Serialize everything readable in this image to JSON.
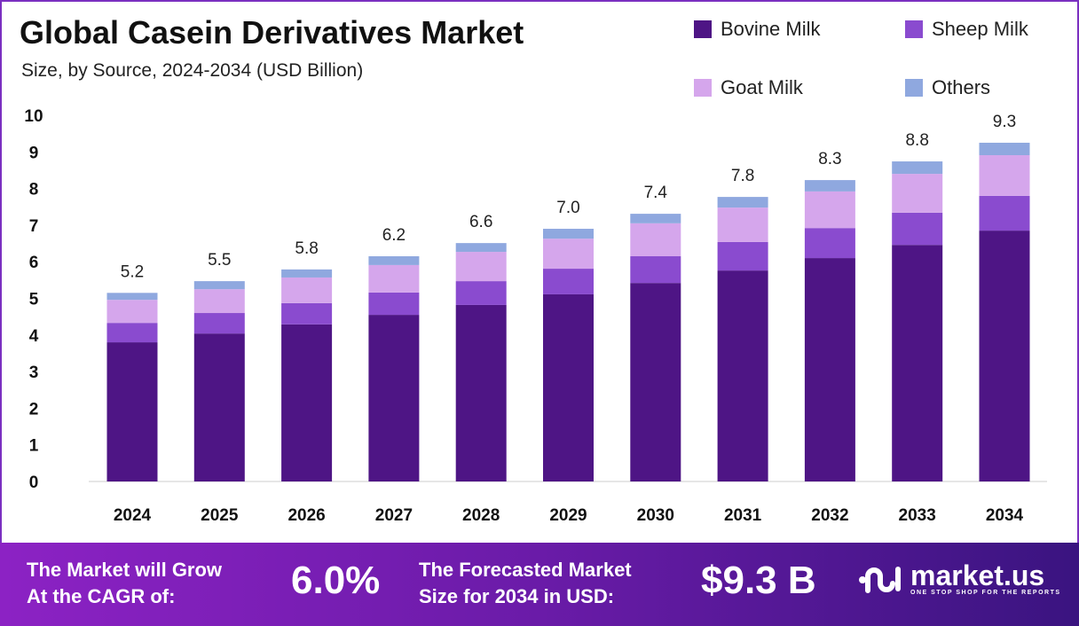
{
  "chart_data": {
    "type": "bar",
    "stacked": true,
    "title": "Global Casein Derivatives Market",
    "subtitle": "Size, by Source, 2024-2034 (USD Billion)",
    "categories": [
      "2024",
      "2025",
      "2026",
      "2027",
      "2028",
      "2029",
      "2030",
      "2031",
      "2032",
      "2033",
      "2034"
    ],
    "totals_labels": [
      "5.2",
      "5.5",
      "5.8",
      "6.2",
      "6.6",
      "7.0",
      "7.4",
      "7.8",
      "8.3",
      "8.8",
      "9.3"
    ],
    "series": [
      {
        "name": "Bovine Milk",
        "color": "#4e1585",
        "values": [
          3.8,
          4.04,
          4.29,
          4.55,
          4.82,
          5.11,
          5.42,
          5.76,
          6.1,
          6.46,
          6.85
        ]
      },
      {
        "name": "Sheep Milk",
        "color": "#8a4bcf",
        "values": [
          0.53,
          0.56,
          0.58,
          0.61,
          0.65,
          0.7,
          0.73,
          0.78,
          0.82,
          0.88,
          0.95
        ]
      },
      {
        "name": "Goat Milk",
        "color": "#d5a6ec",
        "values": [
          0.63,
          0.65,
          0.7,
          0.75,
          0.8,
          0.82,
          0.9,
          0.94,
          1.0,
          1.06,
          1.11
        ]
      },
      {
        "name": "Others",
        "color": "#8fa8df",
        "values": [
          0.19,
          0.22,
          0.22,
          0.24,
          0.24,
          0.27,
          0.26,
          0.29,
          0.31,
          0.34,
          0.34
        ]
      }
    ],
    "ylim": [
      0,
      10
    ],
    "yticks": [
      "0",
      "1",
      "2",
      "3",
      "4",
      "5",
      "6",
      "7",
      "8",
      "9",
      "10"
    ],
    "grid": false,
    "legend_placement": "top-right"
  },
  "banner": {
    "cagr_label_1": "The Market will Grow",
    "cagr_label_2": "At the CAGR of:",
    "cagr_value": "6.0%",
    "forecast_label_1": "The Forecasted Market",
    "forecast_label_2": "Size for 2034 in USD:",
    "forecast_value": "$9.3 B",
    "logo_name": "market.us",
    "logo_tagline": "ONE STOP SHOP FOR THE REPORTS"
  }
}
